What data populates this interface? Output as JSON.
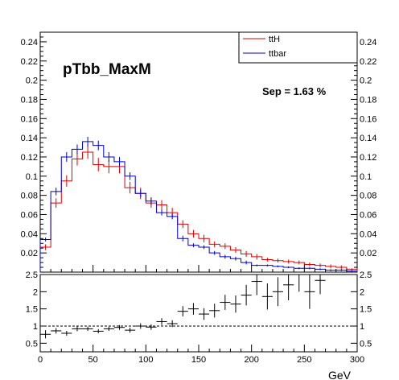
{
  "chart_data": [
    {
      "type": "line",
      "panel": "main",
      "title": "pTbb_MaxM",
      "annotation": "Sep = 1.63 %",
      "xlim": [
        0,
        300
      ],
      "ylim": [
        0,
        0.25
      ],
      "y_ticks": [
        "0.02",
        "0.04",
        "0.06",
        "0.08",
        "0.1",
        "0.12",
        "0.14",
        "0.16",
        "0.18",
        "0.2",
        "0.22",
        "0.24"
      ],
      "y_tick_values": [
        0.02,
        0.04,
        0.06,
        0.08,
        0.1,
        0.12,
        0.14,
        0.16,
        0.18,
        0.2,
        0.22,
        0.24
      ],
      "legend_position": "top-right",
      "bin_edges": [
        0,
        10,
        20,
        30,
        40,
        50,
        60,
        70,
        80,
        90,
        100,
        110,
        120,
        130,
        140,
        150,
        160,
        170,
        180,
        190,
        200,
        210,
        220,
        230,
        240,
        250,
        260,
        270,
        280,
        290,
        300
      ],
      "series": [
        {
          "name": "ttH",
          "color": "#dd0000",
          "values": [
            0.026,
            0.072,
            0.095,
            0.118,
            0.125,
            0.112,
            0.11,
            0.11,
            0.088,
            0.082,
            0.072,
            0.07,
            0.062,
            0.05,
            0.04,
            0.035,
            0.029,
            0.027,
            0.023,
            0.019,
            0.016,
            0.013,
            0.012,
            0.011,
            0.01,
            0.008,
            0.007,
            0.006,
            0.005,
            0.003
          ],
          "errors": [
            0.003,
            0.005,
            0.006,
            0.007,
            0.007,
            0.007,
            0.007,
            0.007,
            0.006,
            0.006,
            0.005,
            0.005,
            0.005,
            0.004,
            0.004,
            0.004,
            0.003,
            0.003,
            0.003,
            0.003,
            0.003,
            0.002,
            0.002,
            0.002,
            0.002,
            0.002,
            0.002,
            0.002,
            0.002,
            0.001
          ]
        },
        {
          "name": "ttbar",
          "color": "#0000cc",
          "values": [
            0.034,
            0.084,
            0.12,
            0.128,
            0.136,
            0.132,
            0.12,
            0.115,
            0.1,
            0.082,
            0.074,
            0.062,
            0.058,
            0.035,
            0.028,
            0.026,
            0.02,
            0.016,
            0.014,
            0.01,
            0.007,
            0.007,
            0.006,
            0.005,
            0.004,
            0.004,
            0.003,
            0.002,
            0.002,
            0.001
          ],
          "errors": [
            0.002,
            0.004,
            0.005,
            0.005,
            0.005,
            0.005,
            0.005,
            0.005,
            0.004,
            0.004,
            0.004,
            0.003,
            0.003,
            0.003,
            0.002,
            0.002,
            0.002,
            0.002,
            0.002,
            0.002,
            0.001,
            0.001,
            0.001,
            0.001,
            0.001,
            0.001,
            0.001,
            0.001,
            0.001,
            0.001
          ]
        }
      ]
    },
    {
      "type": "scatter",
      "panel": "ratio",
      "xlabel": "GeV",
      "xlim": [
        0,
        300
      ],
      "ylim": [
        0.25,
        2.5
      ],
      "x_ticks": [
        "0",
        "50",
        "100",
        "150",
        "200",
        "250",
        "300"
      ],
      "x_tick_values": [
        0,
        50,
        100,
        150,
        200,
        250,
        300
      ],
      "y_ticks": [
        "0.5",
        "1",
        "1.5",
        "2",
        "2.5"
      ],
      "y_tick_values": [
        0.5,
        1,
        1.5,
        2,
        2.5
      ],
      "reference_line": 1,
      "bin_edges": [
        0,
        10,
        20,
        30,
        40,
        50,
        60,
        70,
        80,
        90,
        100,
        110,
        120,
        130,
        140,
        150,
        160,
        170,
        180,
        190,
        200,
        210,
        220,
        230,
        240,
        250,
        260,
        270,
        280,
        290,
        300
      ],
      "points": [
        {
          "x": 5,
          "y": 0.76,
          "err": 0.12
        },
        {
          "x": 15,
          "y": 0.86,
          "err": 0.08
        },
        {
          "x": 25,
          "y": 0.79,
          "err": 0.07
        },
        {
          "x": 35,
          "y": 0.92,
          "err": 0.07
        },
        {
          "x": 45,
          "y": 0.92,
          "err": 0.06
        },
        {
          "x": 55,
          "y": 0.85,
          "err": 0.06
        },
        {
          "x": 65,
          "y": 0.92,
          "err": 0.06
        },
        {
          "x": 75,
          "y": 0.96,
          "err": 0.07
        },
        {
          "x": 85,
          "y": 0.88,
          "err": 0.07
        },
        {
          "x": 95,
          "y": 1.0,
          "err": 0.08
        },
        {
          "x": 105,
          "y": 0.97,
          "err": 0.08
        },
        {
          "x": 115,
          "y": 1.13,
          "err": 0.1
        },
        {
          "x": 125,
          "y": 1.07,
          "err": 0.1
        },
        {
          "x": 135,
          "y": 1.43,
          "err": 0.15
        },
        {
          "x": 145,
          "y": 1.5,
          "err": 0.17
        },
        {
          "x": 155,
          "y": 1.35,
          "err": 0.17
        },
        {
          "x": 165,
          "y": 1.45,
          "err": 0.2
        },
        {
          "x": 175,
          "y": 1.69,
          "err": 0.22
        },
        {
          "x": 185,
          "y": 1.64,
          "err": 0.25
        },
        {
          "x": 195,
          "y": 1.9,
          "err": 0.3
        },
        {
          "x": 205,
          "y": 2.3,
          "err": 0.4
        },
        {
          "x": 215,
          "y": 1.86,
          "err": 0.38
        },
        {
          "x": 225,
          "y": 2.0,
          "err": 0.42
        },
        {
          "x": 235,
          "y": 2.2,
          "err": 0.45
        },
        {
          "x": 245,
          "y": 2.5,
          "err": 0.5
        },
        {
          "x": 255,
          "y": 2.0,
          "err": 0.5
        },
        {
          "x": 265,
          "y": 2.33,
          "err": 0.4
        }
      ]
    }
  ]
}
